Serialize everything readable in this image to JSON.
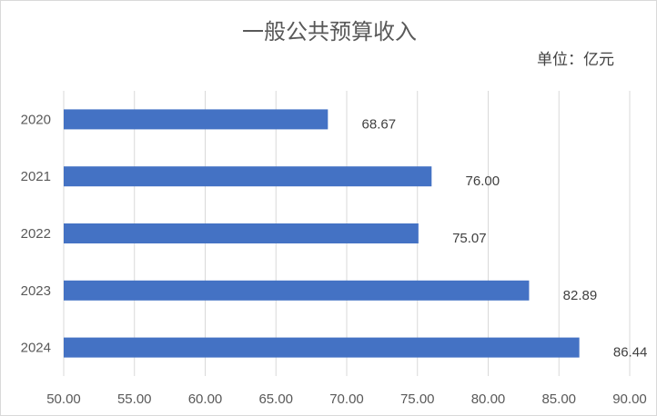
{
  "chart_data": {
    "type": "bar",
    "orientation": "horizontal",
    "title": "一般公共预算收入",
    "unit_label": "单位：亿元",
    "categories": [
      "2020",
      "2021",
      "2022",
      "2023",
      "2024"
    ],
    "values": [
      68.67,
      76.0,
      75.07,
      82.89,
      86.44
    ],
    "data_labels": [
      "68.67",
      "76.00",
      "75.07",
      "82.89",
      "86.44"
    ],
    "xlim": [
      50,
      90
    ],
    "x_ticks": [
      "50.00",
      "55.00",
      "60.00",
      "65.00",
      "70.00",
      "75.00",
      "80.00",
      "85.00",
      "90.00"
    ],
    "grid": true,
    "legend": "none",
    "bar_color": "#4472C4"
  }
}
